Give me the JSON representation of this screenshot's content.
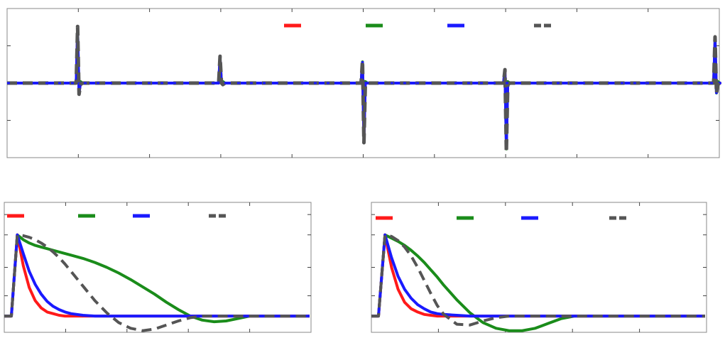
{
  "figure": {
    "palette": {
      "red": "#ff1a1a",
      "green": "#1a8c1a",
      "blue": "#1a1aff",
      "gray": "#555555"
    }
  },
  "chart_data": [
    {
      "type": "line",
      "title": "",
      "xlabel": "",
      "ylabel": "",
      "xlim": [
        0,
        1000
      ],
      "ylim": [
        -1,
        1
      ],
      "grid": false,
      "legend": {
        "position": "top-right",
        "entries": [
          {
            "color": "red",
            "style": "solid"
          },
          {
            "color": "green",
            "style": "solid"
          },
          {
            "color": "blue",
            "style": "solid"
          },
          {
            "color": "gray",
            "style": "dashed"
          }
        ]
      },
      "events": [
        {
          "x": 100,
          "peak": 0.76,
          "trough": -0.15
        },
        {
          "x": 300,
          "peak": 0.36,
          "trough": 0.0
        },
        {
          "x": 500,
          "peak": 0.3,
          "trough": -0.8
        },
        {
          "x": 700,
          "peak": 0.18,
          "trough": -0.93
        },
        {
          "x": 1000,
          "peak": 0.62,
          "trough": -0.14
        }
      ],
      "series": [
        {
          "color": "red",
          "style": "solid"
        },
        {
          "color": "green",
          "style": "solid"
        },
        {
          "color": "blue",
          "style": "solid"
        },
        {
          "color": "gray",
          "style": "dashed"
        }
      ]
    },
    {
      "type": "line",
      "title": "",
      "xlabel": "",
      "ylabel": "",
      "xlim": [
        0,
        1
      ],
      "ylim": [
        -0.2,
        1.4
      ],
      "grid": false,
      "legend": {
        "position": "top",
        "entries": [
          {
            "color": "red",
            "style": "solid"
          },
          {
            "color": "green",
            "style": "solid"
          },
          {
            "color": "blue",
            "style": "solid"
          },
          {
            "color": "gray",
            "style": "dashed"
          }
        ]
      },
      "x": [
        0,
        0.02,
        0.04,
        0.06,
        0.08,
        0.1,
        0.12,
        0.14,
        0.16,
        0.18,
        0.2,
        0.24,
        0.28,
        0.32,
        0.36,
        0.4,
        0.44,
        0.48,
        0.52,
        0.56,
        0.6,
        0.64,
        0.68,
        0.72,
        0.76,
        0.8,
        0.84,
        0.88,
        0.92,
        0.96,
        1.0
      ],
      "series": [
        {
          "color": "red",
          "style": "solid",
          "values": [
            0,
            1.0,
            0.62,
            0.35,
            0.19,
            0.1,
            0.05,
            0.03,
            0.01,
            0.0,
            0,
            0,
            0,
            0,
            0,
            0,
            0,
            0,
            0,
            0,
            0,
            0,
            0,
            0,
            0,
            0,
            0,
            0,
            0,
            0,
            0
          ]
        },
        {
          "color": "green",
          "style": "solid",
          "values": [
            0,
            1.0,
            0.94,
            0.9,
            0.87,
            0.85,
            0.83,
            0.81,
            0.79,
            0.77,
            0.75,
            0.71,
            0.66,
            0.6,
            0.53,
            0.45,
            0.36,
            0.27,
            0.17,
            0.08,
            0.0,
            -0.05,
            -0.07,
            -0.06,
            -0.03,
            0,
            0,
            0,
            0,
            0,
            0
          ]
        },
        {
          "color": "blue",
          "style": "solid",
          "values": [
            0,
            1.0,
            0.77,
            0.55,
            0.39,
            0.27,
            0.18,
            0.12,
            0.08,
            0.05,
            0.03,
            0.01,
            0,
            0,
            0,
            0,
            0,
            0,
            0,
            0,
            0,
            0,
            0,
            0,
            0,
            0,
            0,
            0,
            0,
            0,
            0
          ]
        },
        {
          "color": "gray",
          "style": "dashed",
          "values": [
            0,
            1.0,
            0.99,
            0.97,
            0.94,
            0.9,
            0.85,
            0.79,
            0.72,
            0.64,
            0.55,
            0.37,
            0.19,
            0.04,
            -0.08,
            -0.15,
            -0.18,
            -0.16,
            -0.11,
            -0.06,
            -0.02,
            0.0,
            0,
            0,
            0,
            0,
            0,
            0,
            0,
            0,
            0
          ]
        }
      ]
    },
    {
      "type": "line",
      "title": "",
      "xlabel": "",
      "ylabel": "",
      "xlim": [
        0,
        1
      ],
      "ylim": [
        -0.2,
        1.4
      ],
      "grid": false,
      "legend": {
        "position": "top",
        "entries": [
          {
            "color": "red",
            "style": "solid"
          },
          {
            "color": "green",
            "style": "solid"
          },
          {
            "color": "blue",
            "style": "solid"
          },
          {
            "color": "gray",
            "style": "dashed"
          }
        ]
      },
      "x": [
        0,
        0.02,
        0.04,
        0.06,
        0.08,
        0.1,
        0.12,
        0.14,
        0.16,
        0.18,
        0.2,
        0.24,
        0.28,
        0.32,
        0.36,
        0.4,
        0.44,
        0.48,
        0.52,
        0.56,
        0.6,
        0.64,
        0.68,
        0.72,
        0.76,
        0.8,
        0.84,
        0.88,
        0.92,
        0.96,
        1.0
      ],
      "series": [
        {
          "color": "red",
          "style": "solid",
          "values": [
            0,
            1.0,
            0.6,
            0.33,
            0.17,
            0.09,
            0.05,
            0.02,
            0.01,
            0,
            0,
            0,
            0,
            0,
            0,
            0,
            0,
            0,
            0,
            0,
            0,
            0,
            0,
            0,
            0,
            0,
            0,
            0,
            0,
            0,
            0
          ]
        },
        {
          "color": "green",
          "style": "solid",
          "values": [
            0,
            1.0,
            0.96,
            0.92,
            0.87,
            0.81,
            0.74,
            0.66,
            0.57,
            0.48,
            0.38,
            0.2,
            0.04,
            -0.08,
            -0.15,
            -0.18,
            -0.18,
            -0.15,
            -0.09,
            -0.03,
            0,
            0,
            0,
            0,
            0,
            0,
            0,
            0,
            0,
            0,
            0
          ]
        },
        {
          "color": "blue",
          "style": "solid",
          "values": [
            0,
            1.0,
            0.72,
            0.49,
            0.33,
            0.22,
            0.14,
            0.09,
            0.05,
            0.03,
            0.02,
            0.01,
            0,
            0,
            0,
            0,
            0,
            0,
            0,
            0,
            0,
            0,
            0,
            0,
            0,
            0,
            0,
            0,
            0,
            0,
            0
          ]
        },
        {
          "color": "gray",
          "style": "dashed",
          "values": [
            0,
            1.0,
            0.98,
            0.93,
            0.85,
            0.74,
            0.6,
            0.44,
            0.28,
            0.13,
            0.02,
            -0.1,
            -0.11,
            -0.06,
            -0.02,
            0,
            0,
            0,
            0,
            0,
            0,
            0,
            0,
            0,
            0,
            0,
            0,
            0,
            0,
            0,
            0
          ]
        }
      ]
    }
  ]
}
